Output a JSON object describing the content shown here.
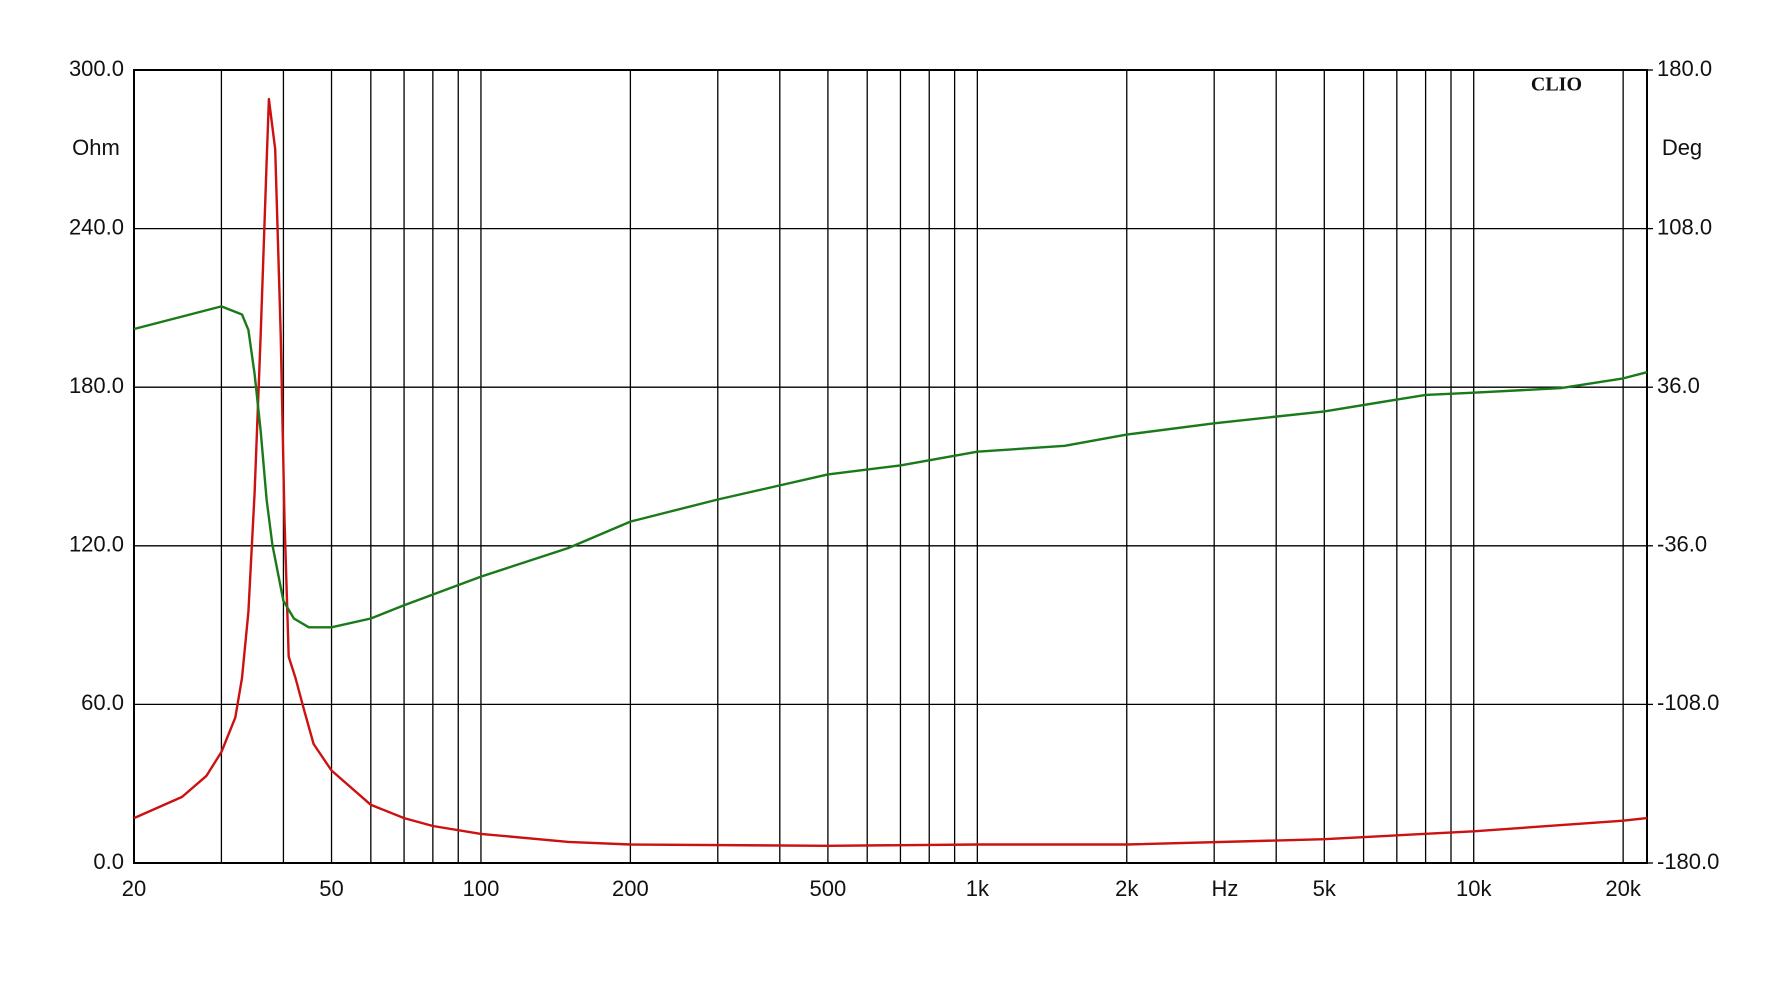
{
  "chart_data": {
    "type": "line",
    "brand": "CLIO",
    "y_label": "Ohm",
    "y2_label": "Deg",
    "x_label": "Hz",
    "log_x": true,
    "grid": true,
    "xlim": [
      20,
      22340
    ],
    "xticks": [
      20,
      50,
      100,
      200,
      500,
      {
        "value": 1000,
        "label": "1k"
      },
      {
        "value": 2000,
        "label": "2k"
      },
      {
        "value": 5000,
        "label": "5k"
      },
      {
        "value": 10000,
        "label": "10k"
      },
      {
        "value": 20000,
        "label": "20k"
      }
    ],
    "xgrid": [
      30,
      40,
      60,
      70,
      80,
      90,
      300,
      400,
      600,
      700,
      800,
      900,
      3000,
      4000,
      6000,
      7000,
      8000,
      9000
    ],
    "ylim": [
      0,
      300
    ],
    "yticks": [
      {
        "value": 0,
        "label": "0.0"
      },
      {
        "value": 60,
        "label": "60.0"
      },
      {
        "value": 120,
        "label": "120.0"
      },
      {
        "value": 180,
        "label": "180.0"
      },
      {
        "value": 240,
        "label": "240.0"
      },
      {
        "value": 300,
        "label": "300.0"
      }
    ],
    "y2lim": [
      -180,
      180
    ],
    "y2ticks": [
      {
        "value": -180,
        "label": "-180.0"
      },
      {
        "value": -108,
        "label": "-108.0"
      },
      {
        "value": -36,
        "label": "-36.0"
      },
      {
        "value": 36,
        "label": "36.0"
      },
      {
        "value": 108,
        "label": "108.0"
      },
      {
        "value": 180,
        "label": "180.0"
      }
    ],
    "series": [
      {
        "color": "#cc1111",
        "axis": "y",
        "x": [
          20,
          25,
          28,
          30,
          32,
          33,
          34,
          35,
          36,
          37,
          37.4,
          38.5,
          39.5,
          40.2,
          41,
          42.3,
          44,
          46,
          50,
          60,
          70,
          80,
          100,
          150,
          200,
          500,
          1000,
          2000,
          5000,
          10000,
          20000,
          22340
        ],
        "values": [
          17,
          25,
          33,
          42,
          55,
          70,
          95,
          140,
          200,
          265,
          289,
          270,
          200,
          130,
          78,
          70,
          58,
          45,
          35,
          22,
          17,
          14,
          11,
          8,
          7,
          6.5,
          7,
          7,
          9,
          12,
          16,
          17
        ]
      },
      {
        "color": "#1a7a1a",
        "axis": "y2",
        "x": [
          20,
          30,
          33,
          34,
          35,
          36,
          37,
          38,
          40,
          42,
          45,
          50,
          60,
          70,
          100,
          150,
          200,
          300,
          500,
          700,
          1000,
          1500,
          2000,
          3000,
          5000,
          8000,
          10000,
          15000,
          20000,
          22340
        ],
        "values": [
          62.4,
          72.7,
          69,
          62,
          42,
          16,
          -15,
          -35.6,
          -61,
          -69,
          -73,
          -73,
          -69,
          -63,
          -50,
          -37,
          -25,
          -15,
          -3.6,
          0.5,
          6.7,
          9.4,
          14.5,
          19.6,
          25,
          32.5,
          33.5,
          35.6,
          40,
          42.8
        ]
      }
    ]
  }
}
